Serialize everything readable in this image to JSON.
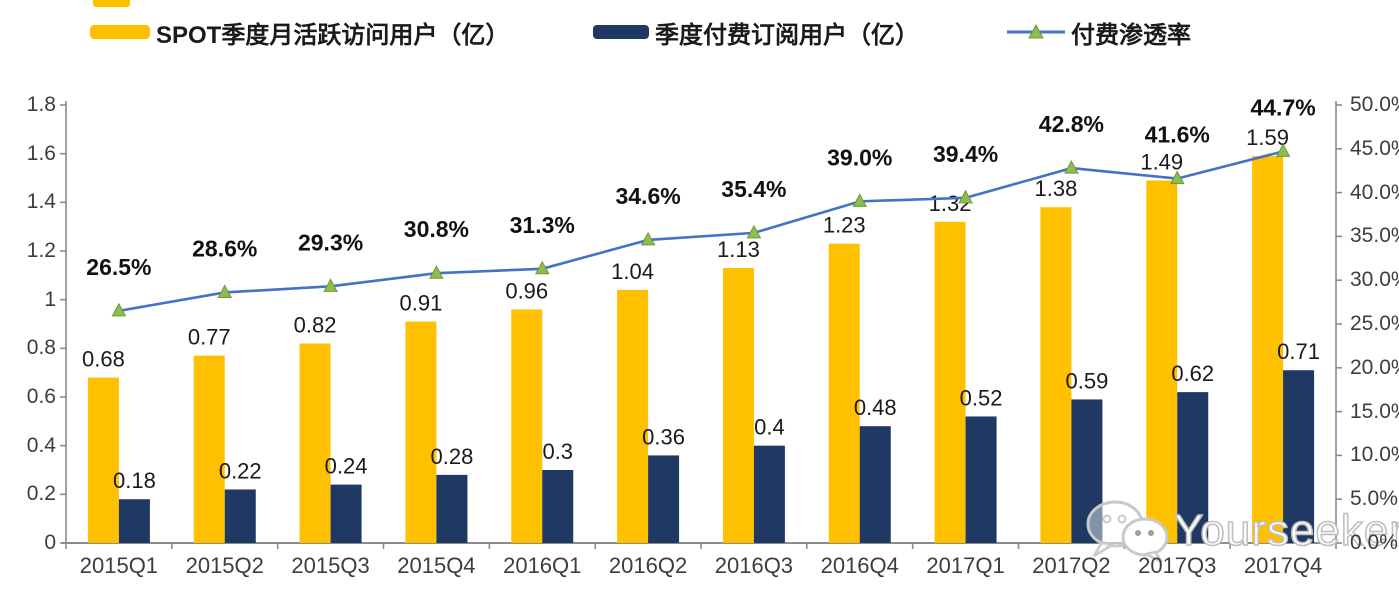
{
  "legend": [
    {
      "label": "SPOT季度月活跃访问用户（亿）",
      "type": "bar",
      "color": "#FFC000"
    },
    {
      "label": "季度付费订阅用户（亿）",
      "type": "bar",
      "color": "#1F3864"
    },
    {
      "label": "付费渗透率",
      "type": "line",
      "color": "#4472C4",
      "marker_color": "#8FBC4F"
    }
  ],
  "chart_data": {
    "type": "bar+line combo",
    "title": "",
    "categories": [
      "2015Q1",
      "2015Q2",
      "2015Q3",
      "2015Q4",
      "2016Q1",
      "2016Q2",
      "2016Q3",
      "2016Q4",
      "2017Q1",
      "2017Q2",
      "2017Q3",
      "2017Q4"
    ],
    "series": [
      {
        "name": "SPOT季度月活跃访问用户（亿）",
        "type": "bar",
        "axis": "left",
        "color": "#FFC000",
        "values": [
          0.68,
          0.77,
          0.82,
          0.91,
          0.96,
          1.04,
          1.13,
          1.23,
          1.32,
          1.38,
          1.49,
          1.59
        ],
        "labels": [
          "0.68",
          "0.77",
          "0.82",
          "0.91",
          "0.96",
          "1.04",
          "1.13",
          "1.23",
          "1.32",
          "1.38",
          "1.49",
          "1.59"
        ]
      },
      {
        "name": "季度付费订阅用户（亿）",
        "type": "bar",
        "axis": "left",
        "color": "#1F3864",
        "values": [
          0.18,
          0.22,
          0.24,
          0.28,
          0.3,
          0.36,
          0.4,
          0.48,
          0.52,
          0.59,
          0.62,
          0.71
        ],
        "labels": [
          "0.18",
          "0.22",
          "0.24",
          "0.28",
          "0.3",
          "0.36",
          "0.4",
          "0.48",
          "0.52",
          "0.59",
          "0.62",
          "0.71"
        ]
      },
      {
        "name": "付费渗透率",
        "type": "line",
        "axis": "right",
        "color": "#4472C4",
        "marker": "triangle",
        "marker_color": "#8FBC4F",
        "values": [
          26.5,
          28.6,
          29.3,
          30.8,
          31.3,
          34.6,
          35.4,
          39.0,
          39.4,
          42.8,
          41.6,
          44.7
        ],
        "labels": [
          "26.5%",
          "28.6%",
          "29.3%",
          "30.8%",
          "31.3%",
          "34.6%",
          "35.4%",
          "39.0%",
          "39.4%",
          "42.8%",
          "41.6%",
          "44.7%"
        ]
      }
    ],
    "left_axis": {
      "min": 0,
      "max": 1.8,
      "step": 0.2,
      "ticks": [
        "1.8",
        "1.6",
        "1.4",
        "1.2",
        "1",
        "0.8",
        "0.6",
        "0.4",
        "0.2",
        "0"
      ]
    },
    "right_axis": {
      "min": 0,
      "max": 50,
      "step": 5,
      "ticks": [
        "50.0%",
        "45.0%",
        "40.0%",
        "35.0%",
        "30.0%",
        "25.0%",
        "20.0%",
        "15.0%",
        "10.0%",
        "5.0%",
        "0.0%"
      ]
    },
    "grid": false,
    "legend_position": "top",
    "axis_color": "#8c8c8c"
  },
  "watermark": {
    "text": "Yourseeker",
    "icon": "wechat-icon"
  }
}
